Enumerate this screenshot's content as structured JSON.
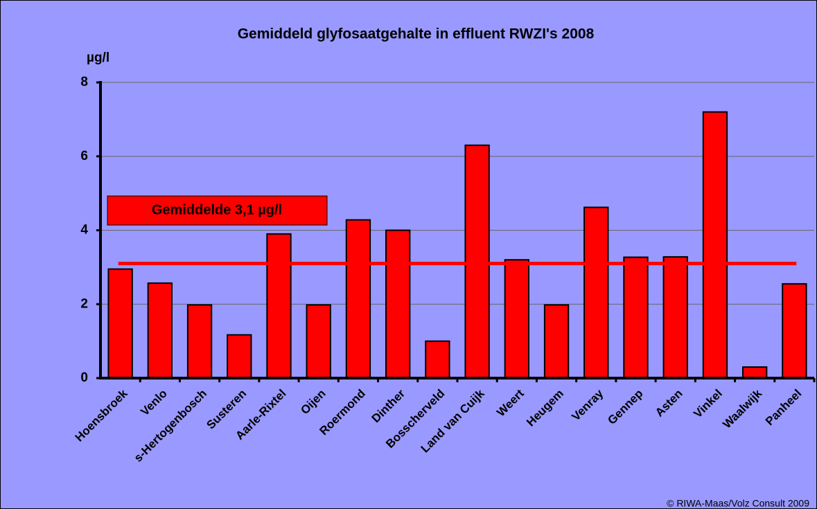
{
  "chart_data": {
    "type": "bar",
    "title": "Gemiddeld glyfosaatgehalte in effluent RWZI's 2008",
    "y_label": "µg/l",
    "categories": [
      "Hoensbroek",
      "Venlo",
      "s-Hertogenbosch",
      "Susteren",
      "Aarle-Rixtel",
      "Oijen",
      "Roermond",
      "Dinther",
      "Bosscherveld",
      "Land van Cuijk",
      "Weert",
      "Heugem",
      "Venray",
      "Gennep",
      "Asten",
      "Vinkel",
      "Waalwijk",
      "Panheel"
    ],
    "values": [
      2.95,
      2.57,
      1.98,
      1.17,
      3.9,
      1.98,
      4.28,
      4.0,
      1.0,
      6.3,
      3.2,
      1.98,
      4.62,
      3.27,
      3.28,
      7.2,
      0.3,
      2.55
    ],
    "color": "#ff0000",
    "ylim": [
      0,
      8
    ],
    "yticks": [
      0,
      2,
      4,
      6,
      8
    ],
    "grid": true,
    "average": {
      "value": 3.1,
      "label": "Gemiddelde 3,1 µg/l"
    },
    "source": "© RIWA-Maas/Volz Consult 2009"
  }
}
